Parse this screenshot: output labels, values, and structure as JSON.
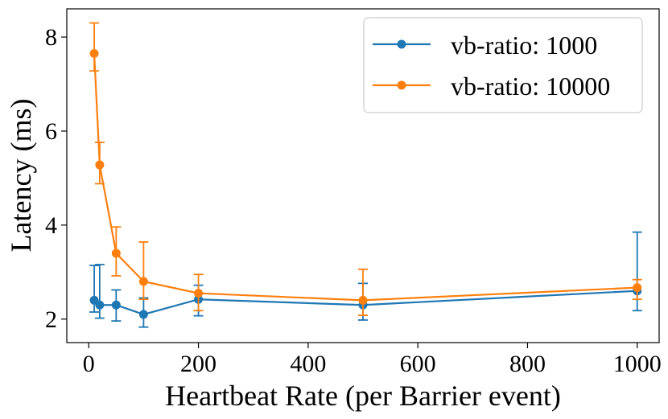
{
  "chart_data": {
    "type": "line",
    "title": "",
    "xlabel": "Heartbeat Rate (per Barrier event)",
    "ylabel": "Latency (ms)",
    "xlim": [
      -40,
      1040
    ],
    "ylim": [
      1.5,
      8.6
    ],
    "xticks": [
      0,
      200,
      400,
      600,
      800,
      1000
    ],
    "xtick_labels": [
      "0",
      "200",
      "400",
      "600",
      "800",
      "1000"
    ],
    "yticks": [
      2,
      4,
      6,
      8
    ],
    "ytick_labels": [
      "2",
      "4",
      "6",
      "8"
    ],
    "grid": false,
    "legend_position": "top-right",
    "series": [
      {
        "name": "vb-ratio: 1000",
        "color": "#1f77b4",
        "x": [
          10,
          20,
          50,
          100,
          200,
          500,
          1000
        ],
        "y": [
          2.4,
          2.3,
          2.3,
          2.1,
          2.42,
          2.3,
          2.6
        ],
        "err_low": [
          2.15,
          2.02,
          1.96,
          1.83,
          2.07,
          1.98,
          2.18
        ],
        "err_high": [
          3.14,
          3.16,
          2.62,
          2.45,
          2.72,
          2.76,
          3.85
        ]
      },
      {
        "name": "vb-ratio: 10000",
        "color": "#ff7f0e",
        "x": [
          10,
          20,
          50,
          100,
          200,
          500,
          1000
        ],
        "y": [
          7.65,
          5.28,
          3.4,
          2.8,
          2.55,
          2.4,
          2.67
        ],
        "err_low": [
          7.28,
          4.88,
          2.92,
          2.42,
          2.18,
          2.08,
          2.42
        ],
        "err_high": [
          8.3,
          5.76,
          3.96,
          3.64,
          2.95,
          3.06,
          2.84
        ]
      }
    ]
  }
}
